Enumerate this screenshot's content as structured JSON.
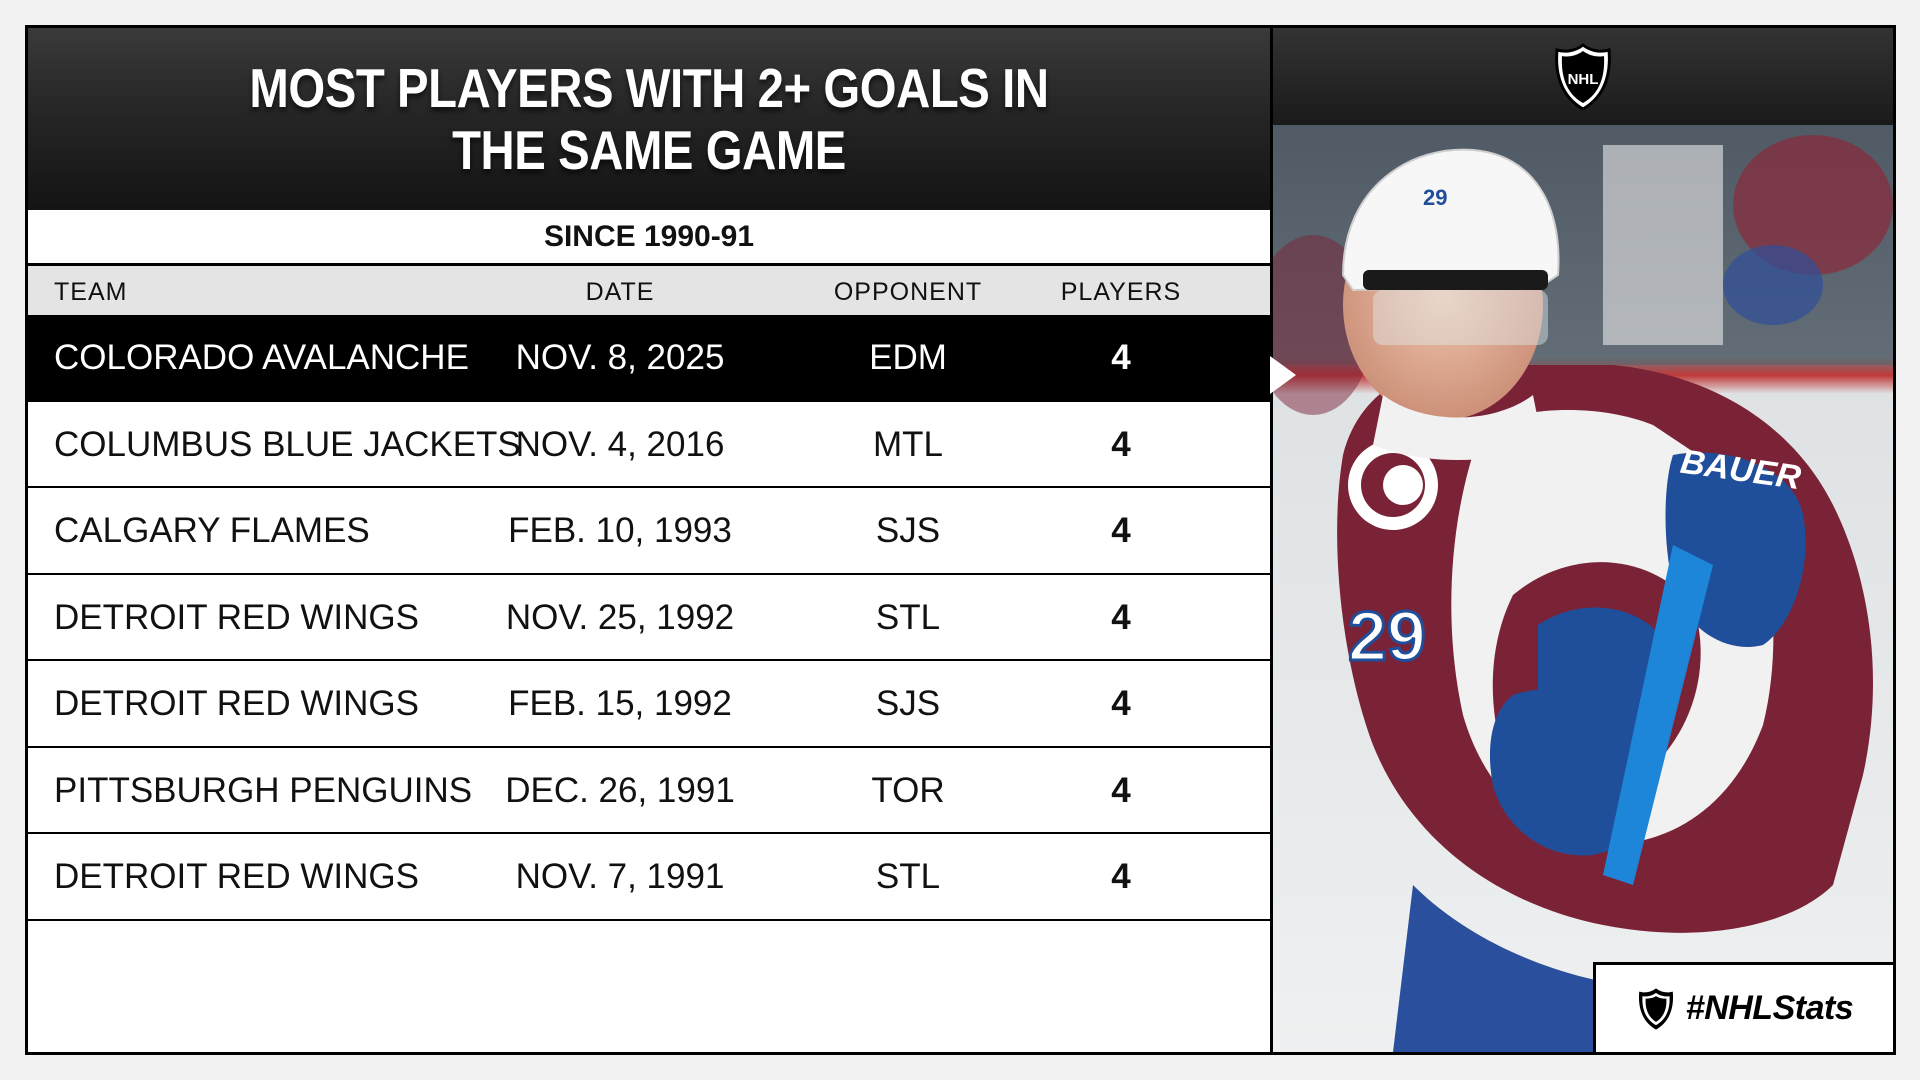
{
  "chart_data": {
    "type": "table",
    "title": "MOST PLAYERS WITH 2+ GOALS IN THE SAME GAME",
    "subtitle": "SINCE 1990-91",
    "columns": [
      "TEAM",
      "DATE",
      "OPPONENT",
      "PLAYERS"
    ],
    "rows": [
      {
        "team": "COLORADO AVALANCHE",
        "date": "NOV. 8, 2025",
        "opponent": "EDM",
        "players": 4,
        "highlight": true
      },
      {
        "team": "COLUMBUS BLUE JACKETS",
        "date": "NOV. 4, 2016",
        "opponent": "MTL",
        "players": 4
      },
      {
        "team": "CALGARY FLAMES",
        "date": "FEB. 10, 1993",
        "opponent": "SJS",
        "players": 4
      },
      {
        "team": "DETROIT RED WINGS",
        "date": "NOV. 25, 1992",
        "opponent": "STL",
        "players": 4
      },
      {
        "team": "DETROIT RED WINGS",
        "date": "FEB. 15, 1992",
        "opponent": "SJS",
        "players": 4
      },
      {
        "team": "PITTSBURGH PENGUINS",
        "date": "DEC. 26, 1991",
        "opponent": "TOR",
        "players": 4
      },
      {
        "team": "DETROIT RED WINGS",
        "date": "NOV. 7, 1991",
        "opponent": "STL",
        "players": 4
      }
    ]
  },
  "branding": {
    "logo_text": "NHL",
    "hashtag": "#NHLStats",
    "jersey_number": "29"
  },
  "colors": {
    "highlight_row": "#000000",
    "header_row": "#e4e4e4",
    "burgundy": "#7a2337",
    "blue": "#1f4e9a"
  }
}
